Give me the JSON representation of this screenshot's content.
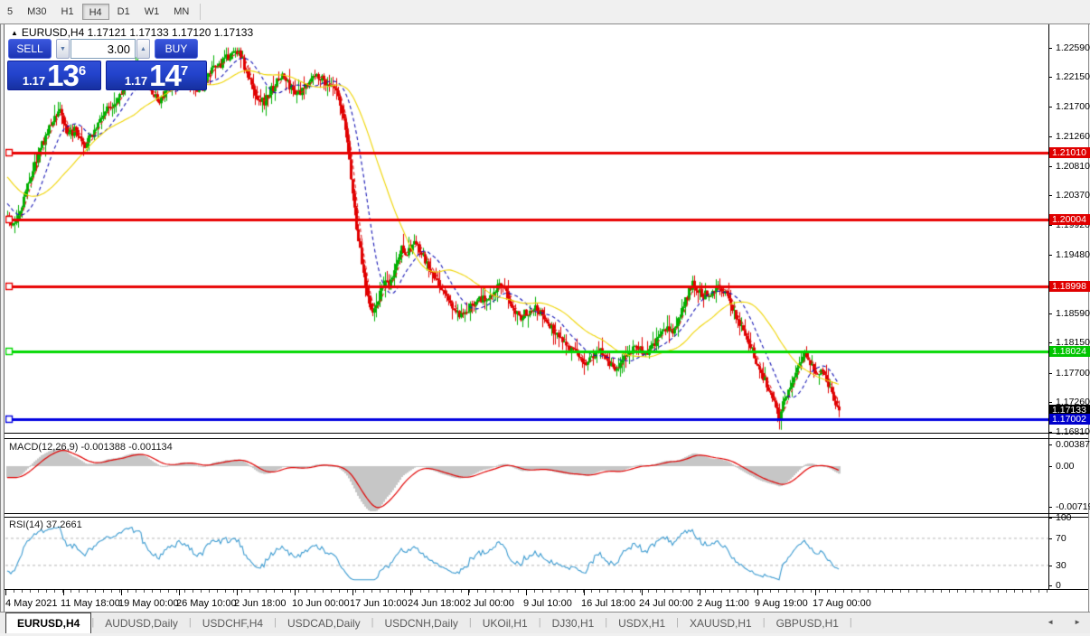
{
  "toolbar": {
    "timeframes": [
      {
        "label": "5",
        "active": false
      },
      {
        "label": "M30",
        "active": false
      },
      {
        "label": "H1",
        "active": false
      },
      {
        "label": "H4",
        "active": true
      },
      {
        "label": "D1",
        "active": false
      },
      {
        "label": "W1",
        "active": false
      },
      {
        "label": "MN",
        "active": false
      }
    ]
  },
  "chart": {
    "collapse_icon": "▲",
    "title": "EURUSD,H4  1.17121 1.17133 1.17120 1.17133"
  },
  "trade_panel": {
    "sell_label": "SELL",
    "buy_label": "BUY",
    "volume": "3.00",
    "decrease_icon": "▼",
    "increase_icon": "▲",
    "sell_price": {
      "prefix": "1.17",
      "big": "13",
      "sup": "6"
    },
    "buy_price": {
      "prefix": "1.17",
      "big": "14",
      "sup": "7"
    }
  },
  "indicators": {
    "macd": {
      "label": "MACD(12,26,9) -0.001388 -0.001134"
    },
    "rsi": {
      "label": "RSI(14) 37.2661"
    }
  },
  "tabs": {
    "items": [
      {
        "label": "EURUSD,H4",
        "active": true
      },
      {
        "label": "AUDUSD,Daily",
        "active": false
      },
      {
        "label": "USDCHF,H4",
        "active": false
      },
      {
        "label": "USDCAD,Daily",
        "active": false
      },
      {
        "label": "USDCNH,Daily",
        "active": false
      },
      {
        "label": "UKOil,H1",
        "active": false
      },
      {
        "label": "DJ30,H1",
        "active": false
      },
      {
        "label": "USDX,H1",
        "active": false
      },
      {
        "label": "XAUUSD,H1",
        "active": false
      },
      {
        "label": "GBPUSD,H1",
        "active": false
      }
    ],
    "scroll_left_icon": "◄",
    "scroll_right_icon": "►"
  },
  "chart_data": {
    "type": "candlestick",
    "symbol": "EURUSD",
    "timeframe": "H4",
    "ohlc_display": {
      "open": "1.17121",
      "high": "1.17133",
      "low": "1.17120",
      "close": "1.17133"
    },
    "y_range": [
      1.1681,
      1.2259
    ],
    "y_axis_labels": [
      "1.22590",
      "1.22150",
      "1.21700",
      "1.21260",
      "1.20810",
      "1.20370",
      "1.19920",
      "1.19480",
      "1.18590",
      "1.18150",
      "1.17700",
      "1.17260",
      "1.16810"
    ],
    "price_badges": [
      {
        "text": "1.21010",
        "color": "#e00000"
      },
      {
        "text": "1.20004",
        "color": "#e00000"
      },
      {
        "text": "1.18998",
        "color": "#e00000"
      },
      {
        "text": "1.18024",
        "color": "#00c400"
      },
      {
        "text": "1.17133",
        "color": "#000000"
      },
      {
        "text": "1.17002",
        "color": "#0000cc"
      }
    ],
    "horizontal_lines": [
      {
        "price": 1.2101,
        "color": "#e80000",
        "role": "resistance"
      },
      {
        "price": 1.20004,
        "color": "#e80000",
        "role": "resistance"
      },
      {
        "price": 1.18998,
        "color": "#e80000",
        "role": "resistance"
      },
      {
        "price": 1.18024,
        "color": "#00d800",
        "role": "support"
      },
      {
        "price": 1.17002,
        "color": "#0000e0",
        "role": "support"
      }
    ],
    "x_labels": [
      "4 May 2021",
      "11 May 18:00",
      "19 May 00:00",
      "26 May 10:00",
      "2 Jun 18:00",
      "10 Jun 00:00",
      "17 Jun 10:00",
      "24 Jun 18:00",
      "2 Jul 00:00",
      "9 Jul 10:00",
      "16 Jul 18:00",
      "24 Jul 00:00",
      "2 Aug 11:00",
      "9 Aug 19:00",
      "17 Aug 00:00"
    ],
    "moving_averages": [
      {
        "name": "fast",
        "color": "#e02020",
        "style": "dashed",
        "period": 5
      },
      {
        "name": "medium",
        "color": "#1414b4",
        "style": "dashed",
        "period": 16
      },
      {
        "name": "slow",
        "color": "#efd400",
        "style": "solid",
        "period": 40
      }
    ],
    "candle_up_color": "#00b000",
    "candle_down_color": "#e00000",
    "price_path_anchors": [
      [
        -70,
        1.213
      ],
      [
        -30,
        1.2065
      ],
      [
        -5,
        1.2018
      ],
      [
        8,
        1.2005
      ],
      [
        14,
        1.199
      ],
      [
        22,
        1.2015
      ],
      [
        32,
        1.206
      ],
      [
        45,
        1.211
      ],
      [
        58,
        1.215
      ],
      [
        66,
        1.2168
      ],
      [
        74,
        1.2125
      ],
      [
        82,
        1.2135
      ],
      [
        92,
        1.2108
      ],
      [
        102,
        1.213
      ],
      [
        115,
        1.2162
      ],
      [
        128,
        1.218
      ],
      [
        140,
        1.221
      ],
      [
        152,
        1.2232
      ],
      [
        163,
        1.22
      ],
      [
        175,
        1.2178
      ],
      [
        188,
        1.22
      ],
      [
        200,
        1.2218
      ],
      [
        212,
        1.2205
      ],
      [
        222,
        1.2195
      ],
      [
        232,
        1.2222
      ],
      [
        244,
        1.2235
      ],
      [
        256,
        1.225
      ],
      [
        264,
        1.2256
      ],
      [
        272,
        1.2222
      ],
      [
        282,
        1.2188
      ],
      [
        292,
        1.2178
      ],
      [
        302,
        1.22
      ],
      [
        312,
        1.2218
      ],
      [
        322,
        1.2198
      ],
      [
        332,
        1.2188
      ],
      [
        342,
        1.2212
      ],
      [
        352,
        1.2218
      ],
      [
        362,
        1.2205
      ],
      [
        372,
        1.2192
      ],
      [
        378,
        1.2158
      ],
      [
        383,
        1.213
      ],
      [
        388,
        1.2065
      ],
      [
        394,
        1.199
      ],
      [
        400,
        1.1935
      ],
      [
        406,
        1.189
      ],
      [
        412,
        1.1857
      ],
      [
        418,
        1.188
      ],
      [
        424,
        1.1905
      ],
      [
        430,
        1.1898
      ],
      [
        437,
        1.1928
      ],
      [
        444,
        1.1958
      ],
      [
        451,
        1.195
      ],
      [
        458,
        1.1968
      ],
      [
        465,
        1.195
      ],
      [
        472,
        1.1932
      ],
      [
        480,
        1.1912
      ],
      [
        488,
        1.1898
      ],
      [
        496,
        1.1878
      ],
      [
        504,
        1.186
      ],
      [
        512,
        1.1852
      ],
      [
        520,
        1.1868
      ],
      [
        528,
        1.1885
      ],
      [
        536,
        1.1878
      ],
      [
        544,
        1.1892
      ],
      [
        552,
        1.1902
      ],
      [
        560,
        1.1888
      ],
      [
        568,
        1.1868
      ],
      [
        576,
        1.1855
      ],
      [
        584,
        1.1862
      ],
      [
        592,
        1.1872
      ],
      [
        600,
        1.1855
      ],
      [
        608,
        1.184
      ],
      [
        616,
        1.1828
      ],
      [
        624,
        1.1818
      ],
      [
        632,
        1.1806
      ],
      [
        640,
        1.1792
      ],
      [
        648,
        1.1785
      ],
      [
        656,
        1.1797
      ],
      [
        664,
        1.1806
      ],
      [
        672,
        1.179
      ],
      [
        680,
        1.1774
      ],
      [
        688,
        1.1786
      ],
      [
        696,
        1.1802
      ],
      [
        704,
        1.1812
      ],
      [
        712,
        1.1796
      ],
      [
        720,
        1.1806
      ],
      [
        728,
        1.1822
      ],
      [
        736,
        1.1836
      ],
      [
        744,
        1.1832
      ],
      [
        752,
        1.1855
      ],
      [
        760,
        1.1885
      ],
      [
        766,
        1.1903
      ],
      [
        772,
        1.1896
      ],
      [
        778,
        1.1886
      ],
      [
        786,
        1.1892
      ],
      [
        794,
        1.1902
      ],
      [
        802,
        1.1888
      ],
      [
        810,
        1.1868
      ],
      [
        818,
        1.1845
      ],
      [
        826,
        1.1822
      ],
      [
        834,
        1.1795
      ],
      [
        842,
        1.1768
      ],
      [
        850,
        1.1748
      ],
      [
        856,
        1.1728
      ],
      [
        862,
        1.1703
      ],
      [
        868,
        1.1732
      ],
      [
        874,
        1.1752
      ],
      [
        880,
        1.1772
      ],
      [
        886,
        1.1792
      ],
      [
        890,
        1.1802
      ],
      [
        895,
        1.179
      ],
      [
        900,
        1.1776
      ],
      [
        905,
        1.1766
      ],
      [
        910,
        1.1772
      ],
      [
        915,
        1.1756
      ],
      [
        920,
        1.1742
      ],
      [
        925,
        1.1716
      ],
      [
        928,
        1.1713
      ]
    ],
    "macd_pane": {
      "label": "MACD(12,26,9)",
      "values": [
        "-0.001388",
        "-0.001134"
      ],
      "axis_labels": [
        "0.003873",
        "0.00",
        "-0.00719"
      ],
      "axis_values": [
        0.003873,
        0,
        -0.00719
      ],
      "histogram_color": "#c6c6c6",
      "signal_color": "#e00000"
    },
    "rsi_pane": {
      "label": "RSI(14)",
      "value": "37.2661",
      "axis_labels": [
        "100",
        "70",
        "30",
        "0"
      ],
      "axis_values": [
        100,
        70,
        30,
        0
      ],
      "levels": [
        70,
        30
      ],
      "line_color": "#3a9ad0",
      "level_color": "#b4b4b4"
    }
  }
}
